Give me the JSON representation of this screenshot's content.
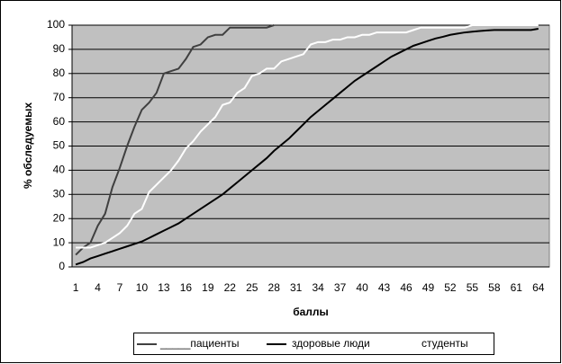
{
  "chart_data": {
    "type": "line",
    "x_label": "баллы",
    "y_label": "% обследуемых",
    "categories": [
      1,
      null,
      null,
      4,
      null,
      null,
      7,
      null,
      null,
      10,
      null,
      null,
      13,
      null,
      null,
      16,
      null,
      null,
      19,
      null,
      null,
      22,
      null,
      null,
      25,
      null,
      null,
      28,
      null,
      null,
      31,
      null,
      null,
      34,
      null,
      null,
      37,
      null,
      null,
      40,
      null,
      null,
      43,
      null,
      null,
      46,
      null,
      null,
      49,
      null,
      null,
      52,
      null,
      null,
      55,
      null,
      null,
      58,
      null,
      null,
      61,
      null,
      null,
      64,
      null
    ],
    "ylim": [
      0,
      100
    ],
    "yticks": [
      0,
      10,
      20,
      30,
      40,
      50,
      60,
      70,
      80,
      90,
      100
    ],
    "grid": true,
    "series": [
      {
        "name": "_____пациенты",
        "color": "#404040",
        "values": [
          5,
          8,
          10,
          17,
          22,
          33,
          41,
          50,
          58,
          65,
          68,
          72,
          80,
          81,
          82,
          86,
          91,
          92,
          95,
          96,
          96,
          99,
          99,
          99,
          99,
          99,
          99,
          100,
          null,
          null,
          null,
          null,
          null,
          null,
          null,
          null,
          null,
          null,
          null,
          null,
          null,
          null,
          null,
          null,
          null,
          null,
          null,
          null,
          null,
          null,
          null,
          null,
          null,
          null,
          null,
          null,
          null,
          null,
          null,
          null,
          null,
          null,
          null,
          null,
          null
        ]
      },
      {
        "name": "здоровые люди",
        "color": "#000000",
        "values": [
          1,
          2,
          3.5,
          4.5,
          5.5,
          6.5,
          7.5,
          8.5,
          9.5,
          10.5,
          12,
          13.5,
          15,
          16.5,
          18,
          20,
          22,
          24,
          26,
          28,
          30,
          32.5,
          35,
          37.5,
          40,
          42.5,
          45,
          48,
          50.5,
          53,
          56,
          59,
          62,
          64.5,
          67,
          69.5,
          72,
          74.5,
          77,
          79,
          81,
          83,
          85,
          87,
          88.5,
          90,
          91.5,
          92.5,
          93.5,
          94.5,
          95.2,
          96,
          96.5,
          97,
          97.3,
          97.6,
          97.8,
          98,
          98,
          98,
          98,
          98,
          98,
          98.5,
          null
        ]
      },
      {
        "name": "студенты",
        "color": "#ffffff",
        "values": [
          8,
          8,
          8,
          9,
          10,
          12,
          14,
          17,
          22,
          24,
          31,
          34,
          37,
          40,
          44,
          49,
          52,
          56,
          59,
          62,
          67,
          68,
          72,
          74,
          79,
          80,
          82,
          82,
          85,
          86,
          87,
          88,
          92,
          93,
          93,
          94,
          94,
          95,
          95,
          96,
          96,
          97,
          97,
          97,
          97,
          97,
          98,
          99,
          99,
          99,
          99,
          99,
          99,
          99,
          100,
          100,
          100,
          100,
          100,
          100,
          100,
          100,
          100,
          100,
          null
        ]
      }
    ]
  }
}
